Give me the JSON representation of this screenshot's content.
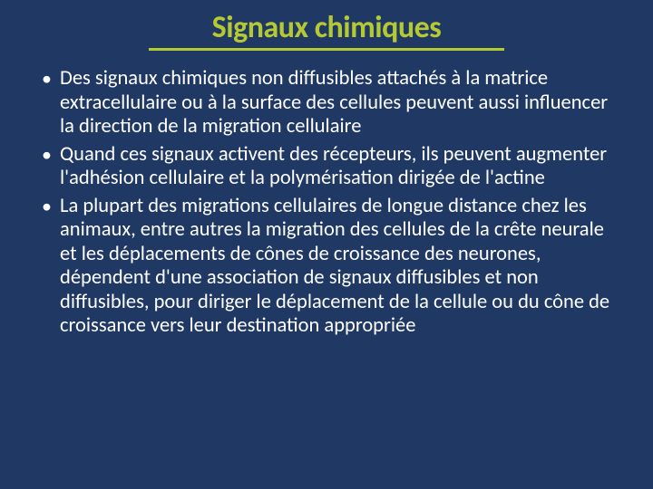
{
  "slide": {
    "title": "Signaux chimiques",
    "title_color": "#b5c932",
    "title_underline_color": "#b5c932",
    "background_color": "#1f3864",
    "text_color": "#ffffff",
    "title_fontsize": 34,
    "body_fontsize": 22.5,
    "bullets": [
      "Des signaux chimiques non diffusibles attachés à la matrice extracellulaire ou à la surface des cellules peuvent aussi influencer la direction de la migration cellulaire",
      "Quand ces signaux activent des récepteurs, ils peuvent augmenter l'adhésion cellulaire et la polymérisation dirigée de l'actine",
      "La plupart des migrations cellulaires de longue distance chez les animaux, entre autres la migration des cellules de la crête neurale et les déplacements de cônes de croissance des neurones, dépendent d'une association de signaux diffusibles et non diffusibles, pour diriger le déplacement de la cellule ou du cône de croissance vers leur destination appropriée"
    ]
  }
}
